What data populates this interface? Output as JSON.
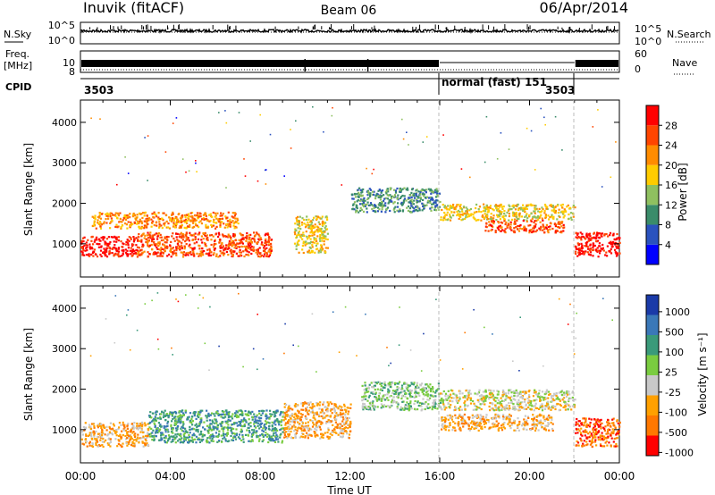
{
  "header": {
    "station": "Inuvik (fitACF)",
    "beam": "Beam 06",
    "date": "06/Apr/2014"
  },
  "nsky_panel": {
    "left_label": "N.Sky",
    "left_ticks": [
      "10^5",
      "10^0"
    ],
    "right_label": "N.Search",
    "right_ticks": [
      "10^5",
      "10^0"
    ]
  },
  "freq_panel": {
    "left_label_1": "Freq.",
    "left_label_2": "[MHz]",
    "left_ticks": [
      "10",
      "8"
    ],
    "right_label": "Nave",
    "right_ticks": [
      "60",
      "0"
    ]
  },
  "cpid_panel": {
    "label": "CPID",
    "segments": [
      {
        "text": "3503",
        "start_hour": 0
      },
      {
        "text": "normal (fast) 151",
        "start_hour": 16
      },
      {
        "text": "3503",
        "start_hour": 22
      }
    ]
  },
  "colors": {
    "power": [
      "#0000ff",
      "#2a52be",
      "#3a8c6a",
      "#8fc060",
      "#ffcc00",
      "#ff8c00",
      "#ff4500",
      "#ff0000"
    ],
    "velocity": [
      "#1a3aa8",
      "#3a78b8",
      "#3a9a7a",
      "#7acc40",
      "#c8c8c8",
      "#ffa000",
      "#ff7800",
      "#ff0000"
    ]
  },
  "chart_data": [
    {
      "type": "heatmap",
      "name": "Power",
      "ylabel": "Slant Range [km]",
      "yticks": [
        1000,
        2000,
        3000,
        4000
      ],
      "ylim": [
        180,
        4550
      ],
      "xlim": [
        0,
        24
      ],
      "colorbar_label": "Power [dB]",
      "colorbar_ticks": [
        "4",
        "8",
        "12",
        "16",
        "20",
        "24",
        "28"
      ],
      "colorbar_range": [
        0,
        32
      ],
      "scatter_regions": [
        {
          "x": [
            0,
            2.5
          ],
          "y": [
            700,
            1200
          ],
          "value": 28
        },
        {
          "x": [
            2.5,
            8.5
          ],
          "y": [
            700,
            1300
          ],
          "value": 27
        },
        {
          "x": [
            0.5,
            7
          ],
          "y": [
            1400,
            1800
          ],
          "value": 20
        },
        {
          "x": [
            9.5,
            11
          ],
          "y": [
            800,
            1700
          ],
          "value": 16
        },
        {
          "x": [
            12,
            16
          ],
          "y": [
            1800,
            2400
          ],
          "value": 8
        },
        {
          "x": [
            16,
            22
          ],
          "y": [
            1600,
            2000
          ],
          "value": 18
        },
        {
          "x": [
            18,
            21.5
          ],
          "y": [
            1300,
            1600
          ],
          "value": 24
        },
        {
          "x": [
            22,
            24
          ],
          "y": [
            700,
            1300
          ],
          "value": 28
        }
      ]
    },
    {
      "type": "heatmap",
      "name": "Velocity",
      "ylabel": "Slant Range [km]",
      "yticks": [
        1000,
        2000,
        3000,
        4000
      ],
      "ylim": [
        180,
        4550
      ],
      "xlim": [
        0,
        24
      ],
      "colorbar_label": "Velocity [m s⁻¹]",
      "colorbar_ticks": [
        "1000",
        "500",
        "100",
        "25",
        "-25",
        "-100",
        "-500",
        "-1000"
      ],
      "scatter_regions": [
        {
          "x": [
            0,
            3
          ],
          "y": [
            600,
            1200
          ],
          "value": -100
        },
        {
          "x": [
            3,
            9
          ],
          "y": [
            700,
            1500
          ],
          "value": 100
        },
        {
          "x": [
            9,
            12
          ],
          "y": [
            800,
            1700
          ],
          "value": -100
        },
        {
          "x": [
            12.5,
            16
          ],
          "y": [
            1500,
            2200
          ],
          "value": 25
        },
        {
          "x": [
            16,
            22
          ],
          "y": [
            1500,
            2000
          ],
          "value": 0
        },
        {
          "x": [
            16,
            21
          ],
          "y": [
            1000,
            1400
          ],
          "value": -100
        },
        {
          "x": [
            22,
            24
          ],
          "y": [
            600,
            1300
          ],
          "value": -500
        }
      ]
    }
  ],
  "xaxis": {
    "ticks": [
      "00:00",
      "04:00",
      "08:00",
      "12:00",
      "16:00",
      "20:00",
      "00:00"
    ],
    "label": "Time UT",
    "range_hours": [
      0,
      24
    ]
  }
}
